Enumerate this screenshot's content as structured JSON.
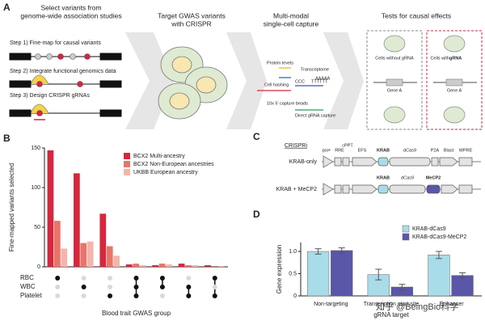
{
  "panels": {
    "a": "A",
    "b": "B",
    "c": "C",
    "d": "D"
  },
  "workflow": {
    "titles": [
      "Select variants from",
      "genome-wide association studies",
      "Target GWAS variants",
      "with CRISPR",
      "Multi-modal",
      "single-cell capture",
      "Tests for causal effects"
    ],
    "steps": [
      "Step 1) Fine-map for causal variants",
      "Step 2) Integrate functional genomics data",
      "Step 3) Design CRISPR gRNAs"
    ],
    "capture": {
      "protein": "Protein levels",
      "transcriptome": "Transcriptome",
      "hashing": "Cell hashing",
      "beads": "10x 5' capture beads",
      "grna": "Direct gRNA capture",
      "polya": "AAAAA",
      "polyt": "TTTTTT",
      "ccc": "CCC"
    },
    "tests": {
      "without": "Cells without gRNA",
      "with_pre": "Cells with ",
      "with_hl": "gRNA",
      "gene1": "Gene A",
      "gene2": "Gene A"
    }
  },
  "constructs": {
    "title": "CRISPRi",
    "row1": "KRAB-only",
    "row2": "KRAB + MeCP2",
    "parts1": [
      "psi+",
      "RRE",
      "cPPT",
      "EFS",
      "KRAB",
      "dCas9",
      "P2A",
      "Blast",
      "WPRE"
    ],
    "parts2": [
      "KRAB",
      "dCas9",
      "MeCP2"
    ]
  },
  "chart_data": [
    {
      "type": "bar",
      "ylabel": "Fine-mapped variants selected",
      "xlabel": "Blood trait GWAS group",
      "categories": [
        null,
        null,
        null,
        null,
        null,
        null,
        null
      ],
      "series": [
        {
          "name": "BCX2 Multi-ancestry",
          "color": "#d7263d",
          "values": [
            147,
            118,
            67,
            3,
            2,
            4,
            2
          ]
        },
        {
          "name": "BCX2 Non-European ancestries",
          "color": "#e8756a",
          "values": [
            58,
            30,
            26,
            4,
            4,
            2,
            0
          ]
        },
        {
          "name": "UKBB European ancestry",
          "color": "#f3b5ae",
          "values": [
            23,
            32,
            14,
            2,
            3,
            2,
            1
          ]
        }
      ],
      "ylim": [
        0,
        150
      ],
      "yticks": [
        0,
        50,
        100,
        150
      ],
      "legend": "upper-right",
      "sets": [
        "RBC",
        "WBC",
        "Platelet"
      ],
      "membership": [
        [
          1,
          0,
          0
        ],
        [
          0,
          1,
          0
        ],
        [
          0,
          0,
          1
        ],
        [
          1,
          1,
          1
        ],
        [
          1,
          1,
          0
        ],
        [
          0,
          1,
          1
        ],
        [
          1,
          0,
          1
        ]
      ]
    },
    {
      "type": "bar",
      "ylabel": "Gene expression",
      "xlabel": "gRNA target",
      "categories": [
        "Non-targeting",
        "Transcription start site",
        "Enhancer"
      ],
      "series": [
        {
          "name": "KRAB-dCas9",
          "color": "#a9dce9",
          "values": [
            1.0,
            0.48,
            0.92
          ],
          "errors": [
            0.06,
            0.12,
            0.08
          ]
        },
        {
          "name": "KRAB-dCas9-MeCP2",
          "color": "#5a56a8",
          "values": [
            1.02,
            0.2,
            0.46
          ],
          "errors": [
            0.06,
            0.06,
            0.06
          ]
        }
      ],
      "ylim": [
        0,
        1.2
      ],
      "yticks": [
        0,
        0.5,
        {
          "value": 1,
          "label": "1.0"
        }
      ],
      "legend": "upper-right"
    }
  ],
  "watermark": "知乎 @BeingBio科学"
}
